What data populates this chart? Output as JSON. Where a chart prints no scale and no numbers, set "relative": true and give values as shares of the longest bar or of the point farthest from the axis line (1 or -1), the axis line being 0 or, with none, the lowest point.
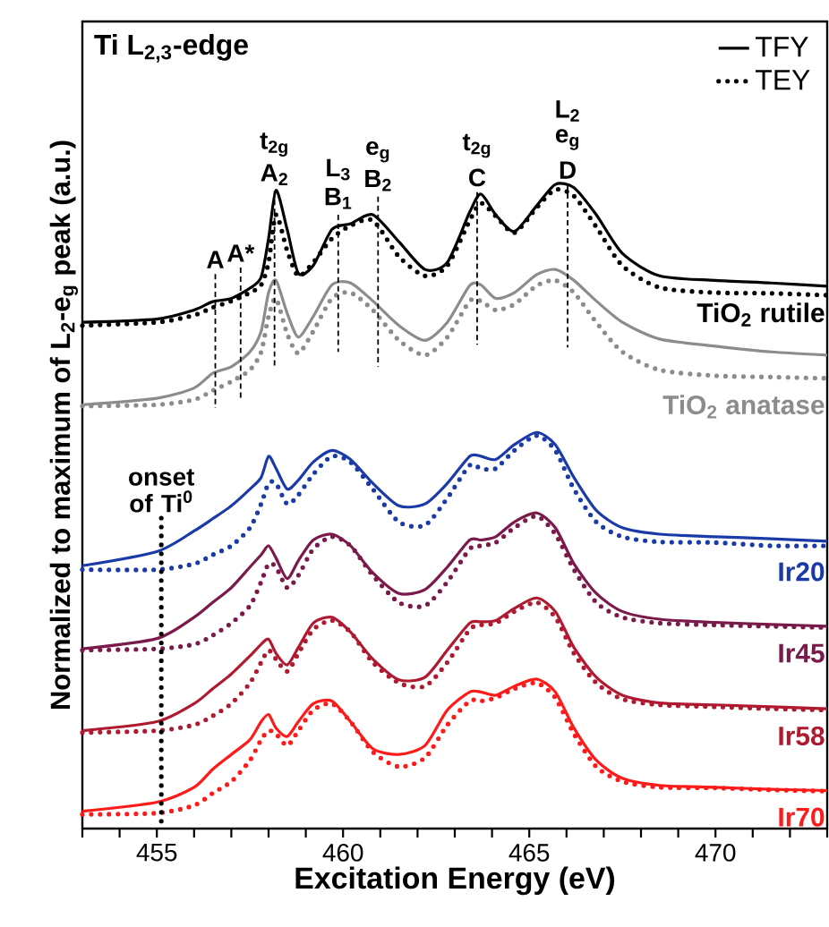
{
  "chart_data": {
    "type": "line",
    "title": "Ti L$_{2,3}$-edge",
    "xlabel": "Excitation Energy (eV)",
    "ylabel": "Normalized to maximum of L$_{2}$-e$_{g}$ peak (a.u.)",
    "relative": true,
    "legend": "top right",
    "xlim": [
      453,
      473
    ],
    "xticks": [
      {
        "value": 453,
        "label": null
      },
      {
        "value": 454,
        "label": null
      },
      455,
      {
        "value": 456,
        "label": null
      },
      {
        "value": 457,
        "label": null
      },
      {
        "value": 458,
        "label": null
      },
      {
        "value": 459,
        "label": null
      },
      460,
      {
        "value": 461,
        "label": null
      },
      {
        "value": 462,
        "label": null
      },
      {
        "value": 463,
        "label": null
      },
      {
        "value": 464,
        "label": null
      },
      465,
      {
        "value": 466,
        "label": null
      },
      {
        "value": 467,
        "label": null
      },
      {
        "value": 468,
        "label": null
      },
      {
        "value": 469,
        "label": null
      },
      470,
      {
        "value": 471,
        "label": null
      },
      {
        "value": 472,
        "label": null
      },
      {
        "value": 473,
        "label": null
      }
    ],
    "x": [
      453,
      455,
      456,
      456.5,
      457,
      457.5,
      457.8,
      458,
      458.2,
      458.5,
      458.8,
      459.2,
      459.7,
      460.2,
      460.8,
      461.5,
      462.2,
      462.8,
      463.4,
      463.7,
      464.1,
      464.6,
      465.2,
      465.7,
      466.2,
      466.8,
      467.5,
      468.5,
      470,
      471.5,
      473
    ],
    "series": [
      {
        "name": "TFY",
        "color": "#000000",
        "line_style": "solid",
        "values": [
          0.786,
          0.791,
          0.805,
          0.818,
          0.823,
          0.839,
          0.856,
          0.916,
          0.991,
          0.93,
          0.862,
          0.874,
          0.93,
          0.939,
          0.953,
          0.911,
          0.868,
          0.879,
          0.957,
          0.985,
          0.953,
          0.927,
          0.967,
          1.0,
          0.995,
          0.953,
          0.893,
          0.858,
          0.851,
          0.847,
          0.842
        ]
      },
      {
        "name": "TEY",
        "color": "#000000",
        "line_style": "dotted",
        "values": [
          0.781,
          0.786,
          0.797,
          0.809,
          0.819,
          0.832,
          0.844,
          0.879,
          0.953,
          0.897,
          0.858,
          0.879,
          0.916,
          0.936,
          0.944,
          0.888,
          0.858,
          0.874,
          0.944,
          0.971,
          0.951,
          0.925,
          0.964,
          0.992,
          0.982,
          0.934,
          0.874,
          0.84,
          0.832,
          0.831,
          0.828
        ]
      },
      {
        "color": "#8c8c8c",
        "line_style": "solid",
        "values": [
          0.658,
          0.668,
          0.684,
          0.707,
          0.717,
          0.74,
          0.772,
          0.832,
          0.851,
          0.8,
          0.763,
          0.795,
          0.844,
          0.847,
          0.819,
          0.781,
          0.758,
          0.786,
          0.843,
          0.844,
          0.823,
          0.832,
          0.86,
          0.868,
          0.851,
          0.819,
          0.786,
          0.76,
          0.749,
          0.74,
          0.735
        ]
      },
      {
        "color": "#8c8c8c",
        "line_style": "dotted",
        "values": [
          0.656,
          0.658,
          0.666,
          0.68,
          0.694,
          0.712,
          0.74,
          0.795,
          0.823,
          0.768,
          0.738,
          0.772,
          0.823,
          0.832,
          0.805,
          0.758,
          0.735,
          0.763,
          0.819,
          0.819,
          0.805,
          0.814,
          0.843,
          0.851,
          0.832,
          0.786,
          0.74,
          0.712,
          0.703,
          0.701,
          0.699
        ]
      },
      {
        "color": "#1a3aa8",
        "line_style": "solid",
        "values": [
          0.408,
          0.43,
          0.462,
          0.481,
          0.501,
          0.527,
          0.545,
          0.578,
          0.559,
          0.527,
          0.541,
          0.569,
          0.587,
          0.573,
          0.536,
          0.501,
          0.504,
          0.536,
          0.578,
          0.578,
          0.573,
          0.596,
          0.615,
          0.596,
          0.545,
          0.494,
          0.467,
          0.457,
          0.453,
          0.45,
          0.446
        ]
      },
      {
        "color": "#1a3aa8",
        "line_style": "dotted",
        "values": [
          0.402,
          0.402,
          0.411,
          0.425,
          0.439,
          0.467,
          0.504,
          0.536,
          0.536,
          0.504,
          0.518,
          0.55,
          0.578,
          0.569,
          0.527,
          0.476,
          0.471,
          0.513,
          0.564,
          0.559,
          0.559,
          0.587,
          0.61,
          0.587,
          0.527,
          0.476,
          0.453,
          0.445,
          0.444,
          0.439,
          0.439
        ]
      },
      {
        "color": "#7a1a4a",
        "line_style": "solid",
        "values": [
          0.279,
          0.295,
          0.328,
          0.351,
          0.374,
          0.406,
          0.425,
          0.439,
          0.42,
          0.388,
          0.416,
          0.448,
          0.457,
          0.439,
          0.397,
          0.365,
          0.371,
          0.406,
          0.448,
          0.448,
          0.453,
          0.476,
          0.49,
          0.467,
          0.411,
          0.365,
          0.337,
          0.325,
          0.32,
          0.317,
          0.314
        ]
      },
      {
        "color": "#7a1a4a",
        "line_style": "dotted",
        "values": [
          0.277,
          0.279,
          0.286,
          0.3,
          0.319,
          0.346,
          0.383,
          0.411,
          0.406,
          0.374,
          0.393,
          0.434,
          0.453,
          0.439,
          0.393,
          0.351,
          0.346,
          0.383,
          0.434,
          0.439,
          0.444,
          0.467,
          0.485,
          0.457,
          0.402,
          0.351,
          0.328,
          0.319,
          0.316,
          0.314,
          0.312
        ]
      },
      {
        "color": "#b01a30",
        "line_style": "solid",
        "values": [
          0.152,
          0.166,
          0.194,
          0.217,
          0.24,
          0.268,
          0.286,
          0.294,
          0.272,
          0.254,
          0.281,
          0.319,
          0.328,
          0.305,
          0.263,
          0.231,
          0.235,
          0.277,
          0.319,
          0.321,
          0.323,
          0.342,
          0.358,
          0.337,
          0.281,
          0.235,
          0.207,
          0.195,
          0.192,
          0.189,
          0.186
        ]
      },
      {
        "color": "#b01a30",
        "line_style": "dotted",
        "values": [
          0.149,
          0.152,
          0.161,
          0.175,
          0.194,
          0.226,
          0.258,
          0.277,
          0.263,
          0.244,
          0.272,
          0.309,
          0.323,
          0.305,
          0.258,
          0.226,
          0.221,
          0.258,
          0.309,
          0.316,
          0.319,
          0.337,
          0.351,
          0.328,
          0.272,
          0.226,
          0.201,
          0.192,
          0.189,
          0.186,
          0.184
        ]
      },
      {
        "color": "#ff1a1a",
        "line_style": "solid",
        "values": [
          0.027,
          0.041,
          0.064,
          0.092,
          0.115,
          0.138,
          0.166,
          0.177,
          0.156,
          0.143,
          0.166,
          0.194,
          0.198,
          0.166,
          0.124,
          0.115,
          0.129,
          0.184,
          0.212,
          0.212,
          0.207,
          0.221,
          0.232,
          0.212,
          0.156,
          0.106,
          0.078,
          0.067,
          0.064,
          0.061,
          0.059
        ]
      },
      {
        "color": "#ff1a1a",
        "line_style": "dotted",
        "values": [
          0.022,
          0.024,
          0.036,
          0.055,
          0.073,
          0.106,
          0.138,
          0.152,
          0.147,
          0.129,
          0.152,
          0.184,
          0.194,
          0.166,
          0.119,
          0.096,
          0.11,
          0.161,
          0.198,
          0.198,
          0.203,
          0.217,
          0.226,
          0.203,
          0.147,
          0.096,
          0.073,
          0.064,
          0.063,
          0.06,
          0.058
        ]
      },
      {
        "color": "#000000",
        "line_style": "dashed",
        "x": [
          456.57,
          456.57
        ],
        "values": [
          0.861,
          0.653
        ]
      },
      {
        "color": "#000000",
        "line_style": "dashed",
        "x": [
          457.25,
          457.25
        ],
        "values": [
          0.871,
          0.666
        ]
      },
      {
        "color": "#000000",
        "line_style": "dashed",
        "x": [
          458.16,
          458.16
        ],
        "values": [
          0.99,
          0.719
        ]
      },
      {
        "color": "#000000",
        "line_style": "dashed",
        "x": [
          459.87,
          459.87
        ],
        "values": [
          0.953,
          0.74
        ]
      },
      {
        "color": "#000000",
        "line_style": "dashed",
        "x": [
          460.94,
          460.94
        ],
        "values": [
          0.981,
          0.717
        ]
      },
      {
        "color": "#000000",
        "line_style": "dashed",
        "x": [
          463.6,
          463.6
        ],
        "values": [
          0.988,
          0.751
        ]
      },
      {
        "color": "#000000",
        "line_style": "dashed",
        "x": [
          466.03,
          466.03
        ],
        "values": [
          1.0,
          0.747
        ]
      },
      {
        "color": "#000000",
        "line_style": "dotted",
        "x": [
          455.12,
          455.12
        ],
        "values": [
          0.482,
          0.004
        ]
      }
    ],
    "annotations": [
      {
        "text": "A",
        "x": 456.57,
        "y": 0.861
      },
      {
        "text": "A*",
        "x": 457.25,
        "y": 0.871
      },
      {
        "text": "A$_{2}$",
        "x": 458.16,
        "y": 0.99
      },
      {
        "text": "t$_{2g}$",
        "x": 458.16,
        "y": 0.99
      },
      {
        "text": "B$_{1}$",
        "x": 459.87,
        "y": 0.953
      },
      {
        "text": "L$_{3}$",
        "x": 459.87,
        "y": 0.953
      },
      {
        "text": "B$_{2}$",
        "x": 460.94,
        "y": 0.981
      },
      {
        "text": "e$_{g}$",
        "x": 460.94,
        "y": 0.981
      },
      {
        "text": "C",
        "x": 463.6,
        "y": 0.988
      },
      {
        "text": "t$_{2g}$",
        "x": 463.6,
        "y": 0.988
      },
      {
        "text": "D",
        "x": 466.03,
        "y": 1.0
      },
      {
        "text": "e$_{g}$",
        "x": 466.03,
        "y": 1.0
      },
      {
        "text": "L$_{2}$",
        "x": 466.03,
        "y": 1.0
      },
      {
        "text": "TiO$_{2}$ rutile",
        "x": 473,
        "y": 0.842
      },
      {
        "text": "TiO$_{2}$ anatase",
        "x": 473,
        "y": 0.699
      },
      {
        "text": "Ir20",
        "x": 473,
        "y": 0.439
      },
      {
        "text": "Ir45",
        "x": 473,
        "y": 0.312
      },
      {
        "text": "Ir58",
        "x": 473,
        "y": 0.184
      },
      {
        "text": "Ir70",
        "x": 473,
        "y": 0.058
      },
      {
        "text": "onset of Ti$^{0}$",
        "x": 455.12,
        "y": 0.482
      }
    ]
  }
}
